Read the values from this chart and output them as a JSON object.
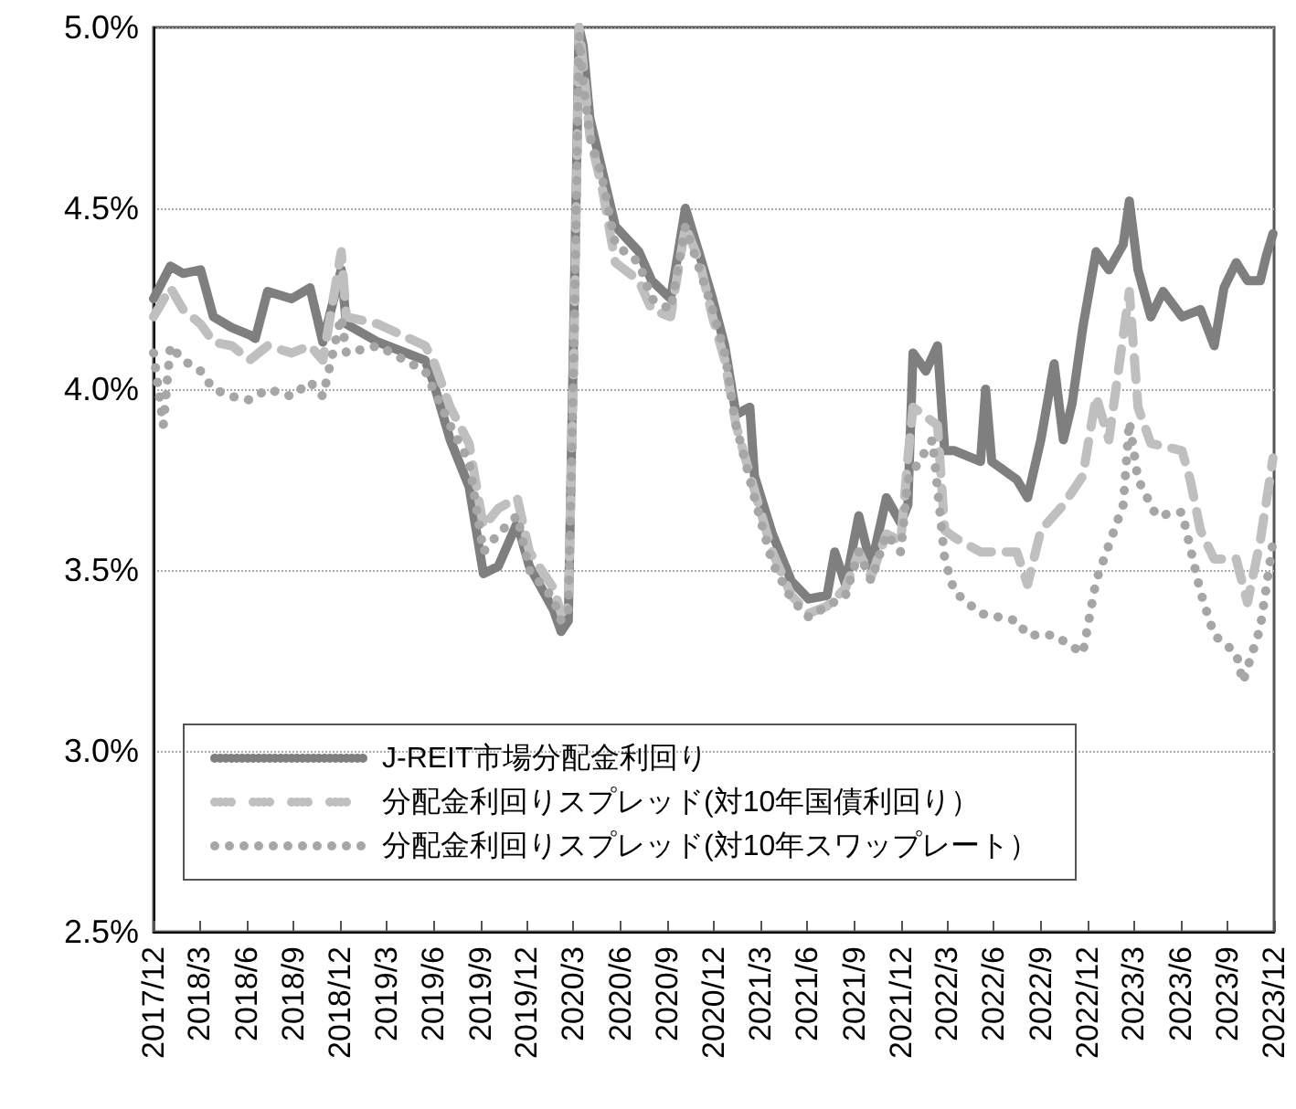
{
  "chart_data": {
    "type": "line",
    "ylim": [
      2.5,
      5.0
    ],
    "yticks": [
      {
        "value": 2.5,
        "label": "2.5%"
      },
      {
        "value": 3.0,
        "label": "3.0%"
      },
      {
        "value": 3.5,
        "label": "3.5%"
      },
      {
        "value": 4.0,
        "label": "4.0%"
      },
      {
        "value": 4.5,
        "label": "4.5%"
      },
      {
        "value": 5.0,
        "label": "5.0%"
      }
    ],
    "xlim": [
      "2017-12-01",
      "2023-12-01"
    ],
    "xticks": [
      {
        "value": "2017-12-01",
        "label": "2017/12"
      },
      {
        "value": "2018-03-01",
        "label": "2018/3"
      },
      {
        "value": "2018-06-01",
        "label": "2018/6"
      },
      {
        "value": "2018-09-01",
        "label": "2018/9"
      },
      {
        "value": "2018-12-01",
        "label": "2018/12"
      },
      {
        "value": "2019-03-01",
        "label": "2019/3"
      },
      {
        "value": "2019-06-01",
        "label": "2019/6"
      },
      {
        "value": "2019-09-01",
        "label": "2019/9"
      },
      {
        "value": "2019-12-01",
        "label": "2019/12"
      },
      {
        "value": "2020-03-01",
        "label": "2020/3"
      },
      {
        "value": "2020-06-01",
        "label": "2020/6"
      },
      {
        "value": "2020-09-01",
        "label": "2020/9"
      },
      {
        "value": "2020-12-01",
        "label": "2020/12"
      },
      {
        "value": "2021-03-01",
        "label": "2021/3"
      },
      {
        "value": "2021-06-01",
        "label": "2021/6"
      },
      {
        "value": "2021-09-01",
        "label": "2021/9"
      },
      {
        "value": "2021-12-01",
        "label": "2021/12"
      },
      {
        "value": "2022-03-01",
        "label": "2022/3"
      },
      {
        "value": "2022-06-01",
        "label": "2022/6"
      },
      {
        "value": "2022-09-01",
        "label": "2022/9"
      },
      {
        "value": "2022-12-01",
        "label": "2022/12"
      },
      {
        "value": "2023-03-01",
        "label": "2023/3"
      },
      {
        "value": "2023-06-01",
        "label": "2023/6"
      },
      {
        "value": "2023-09-01",
        "label": "2023/9"
      },
      {
        "value": "2023-12-01",
        "label": "2023/12"
      }
    ],
    "grid": "y",
    "legend": "bottom left",
    "marker": "none",
    "series": [
      {
        "name": "J-REIT市場分配金利回り",
        "color": "#7f7f7f",
        "line_style": "solid",
        "x": [
          "2017-12-01",
          "2018-01-03",
          "2018-01-28",
          "2018-03-03",
          "2018-03-28",
          "2018-05-03",
          "2018-06-07",
          "2018-06-18",
          "2018-07-12",
          "2018-08-28",
          "2018-10-03",
          "2018-10-28",
          "2018-12-03",
          "2018-12-13",
          "2019-02-13",
          "2019-05-16",
          "2019-06-01",
          "2019-07-04",
          "2019-08-10",
          "2019-09-07",
          "2019-10-06",
          "2019-11-12",
          "2019-12-06",
          "2020-01-22",
          "2020-02-06",
          "2020-02-20",
          "2020-03-02",
          "2020-03-12",
          "2020-03-20",
          "2020-04-02",
          "2020-04-27",
          "2020-05-22",
          "2020-07-07",
          "2020-08-01",
          "2020-09-07",
          "2020-10-06",
          "2020-11-03",
          "2020-11-28",
          "2020-12-22",
          "2021-01-13",
          "2021-02-09",
          "2021-02-18",
          "2021-03-25",
          "2021-05-01",
          "2021-06-04",
          "2021-07-10",
          "2021-07-25",
          "2021-08-15",
          "2021-09-10",
          "2021-10-04",
          "2021-11-03",
          "2021-12-01",
          "2021-12-15",
          "2021-12-25",
          "2022-01-19",
          "2022-02-11",
          "2022-02-25",
          "2022-03-16",
          "2022-05-06",
          "2022-05-16",
          "2022-05-28",
          "2022-07-16",
          "2022-08-06",
          "2022-09-01",
          "2022-09-27",
          "2022-10-15",
          "2022-11-01",
          "2022-11-22",
          "2022-12-18",
          "2023-01-12",
          "2023-02-09",
          "2023-02-21",
          "2023-03-10",
          "2023-04-04",
          "2023-04-28",
          "2023-06-04",
          "2023-07-10",
          "2023-08-06",
          "2023-08-25",
          "2023-09-18",
          "2023-10-10",
          "2023-11-04",
          "2023-11-16",
          "2023-11-29"
        ],
        "values": [
          4.25,
          4.34,
          4.32,
          4.33,
          4.2,
          4.17,
          4.15,
          4.14,
          4.27,
          4.25,
          4.28,
          4.13,
          4.33,
          4.18,
          4.13,
          4.08,
          4.02,
          3.86,
          3.73,
          3.49,
          3.51,
          3.63,
          3.51,
          3.39,
          3.33,
          3.36,
          4.2,
          5.0,
          4.95,
          4.75,
          4.6,
          4.45,
          4.38,
          4.3,
          4.25,
          4.5,
          4.37,
          4.25,
          4.12,
          3.93,
          3.95,
          3.76,
          3.6,
          3.47,
          3.42,
          3.43,
          3.55,
          3.46,
          3.65,
          3.51,
          3.7,
          3.63,
          3.68,
          4.1,
          4.05,
          4.12,
          3.83,
          3.83,
          3.8,
          4.0,
          3.8,
          3.75,
          3.7,
          3.86,
          4.07,
          3.86,
          3.96,
          4.17,
          4.38,
          4.33,
          4.4,
          4.52,
          4.33,
          4.2,
          4.27,
          4.2,
          4.22,
          4.12,
          4.28,
          4.35,
          4.3,
          4.3,
          4.37,
          4.43
        ]
      },
      {
        "name": "分配金利回りスプレッド(対10年国債利回り）",
        "color": "#bfbfbf",
        "line_style": "dashed",
        "x": [
          "2017-12-01",
          "2018-01-03",
          "2018-01-28",
          "2018-03-03",
          "2018-03-28",
          "2018-05-03",
          "2018-06-07",
          "2018-07-12",
          "2018-08-28",
          "2018-10-03",
          "2018-10-28",
          "2018-12-03",
          "2018-12-13",
          "2019-02-13",
          "2019-05-16",
          "2019-06-01",
          "2019-07-04",
          "2019-08-10",
          "2019-09-07",
          "2019-10-06",
          "2019-11-12",
          "2019-12-06",
          "2020-01-22",
          "2020-02-06",
          "2020-02-20",
          "2020-03-02",
          "2020-03-12",
          "2020-03-20",
          "2020-04-02",
          "2020-04-27",
          "2020-05-22",
          "2020-07-07",
          "2020-08-01",
          "2020-09-07",
          "2020-10-06",
          "2020-11-03",
          "2020-11-28",
          "2020-12-22",
          "2021-01-13",
          "2021-02-18",
          "2021-03-25",
          "2021-05-01",
          "2021-06-04",
          "2021-07-10",
          "2021-08-15",
          "2021-09-10",
          "2021-10-04",
          "2021-11-03",
          "2021-12-01",
          "2021-12-15",
          "2021-12-25",
          "2022-02-11",
          "2022-02-25",
          "2022-03-16",
          "2022-05-06",
          "2022-07-16",
          "2022-08-06",
          "2022-09-01",
          "2022-10-15",
          "2022-11-22",
          "2022-12-18",
          "2023-01-12",
          "2023-02-21",
          "2023-03-10",
          "2023-04-04",
          "2023-06-04",
          "2023-06-20",
          "2023-07-10",
          "2023-08-06",
          "2023-09-18",
          "2023-10-10",
          "2023-11-04",
          "2023-11-29"
        ],
        "values": [
          4.2,
          4.28,
          4.22,
          4.18,
          4.13,
          4.12,
          4.08,
          4.12,
          4.1,
          4.12,
          4.08,
          4.38,
          4.2,
          4.18,
          4.12,
          4.08,
          3.95,
          3.85,
          3.62,
          3.67,
          3.7,
          3.55,
          3.45,
          3.38,
          3.4,
          4.1,
          5.0,
          4.9,
          4.7,
          4.55,
          4.35,
          4.3,
          4.22,
          4.2,
          4.45,
          4.35,
          4.2,
          4.08,
          3.9,
          3.72,
          3.55,
          3.43,
          3.38,
          3.4,
          3.45,
          3.55,
          3.48,
          3.6,
          3.58,
          3.81,
          3.95,
          3.9,
          3.61,
          3.59,
          3.55,
          3.55,
          3.46,
          3.61,
          3.68,
          3.76,
          3.98,
          3.86,
          4.27,
          3.95,
          3.85,
          3.83,
          3.75,
          3.61,
          3.53,
          3.53,
          3.41,
          3.58,
          3.81
        ]
      },
      {
        "name": "分配金利回りスプレッド(対10年スワップレート）",
        "color": "#a6a6a6",
        "line_style": "dotted",
        "x": [
          "2017-12-01",
          "2017-12-20",
          "2018-01-03",
          "2018-01-28",
          "2018-03-03",
          "2018-03-28",
          "2018-05-03",
          "2018-06-07",
          "2018-07-12",
          "2018-08-28",
          "2018-10-03",
          "2018-10-28",
          "2018-12-03",
          "2018-12-13",
          "2019-02-13",
          "2019-05-16",
          "2019-06-01",
          "2019-07-04",
          "2019-08-10",
          "2019-09-07",
          "2019-10-06",
          "2019-11-12",
          "2019-12-06",
          "2020-01-22",
          "2020-02-06",
          "2020-02-20",
          "2020-03-02",
          "2020-03-12",
          "2020-03-20",
          "2020-04-02",
          "2020-04-27",
          "2020-05-22",
          "2020-07-07",
          "2020-08-01",
          "2020-09-07",
          "2020-10-06",
          "2020-11-03",
          "2020-11-28",
          "2020-12-22",
          "2021-01-13",
          "2021-02-18",
          "2021-03-25",
          "2021-05-01",
          "2021-06-04",
          "2021-07-10",
          "2021-08-15",
          "2021-09-10",
          "2021-10-04",
          "2021-11-03",
          "2021-12-01",
          "2021-12-15",
          "2022-02-01",
          "2022-02-25",
          "2022-03-16",
          "2022-05-06",
          "2022-07-16",
          "2022-08-06",
          "2022-09-27",
          "2022-11-22",
          "2022-12-18",
          "2023-02-09",
          "2023-02-21",
          "2023-03-10",
          "2023-04-15",
          "2023-06-04",
          "2023-07-10",
          "2023-08-06",
          "2023-09-18",
          "2023-10-01",
          "2023-11-04",
          "2023-11-29"
        ],
        "values": [
          4.1,
          3.9,
          4.12,
          4.08,
          4.05,
          4.0,
          3.98,
          3.97,
          4.0,
          3.98,
          4.02,
          3.98,
          4.2,
          4.1,
          4.12,
          4.05,
          4.0,
          3.9,
          3.8,
          3.55,
          3.6,
          3.65,
          3.5,
          3.42,
          3.36,
          3.38,
          4.1,
          4.98,
          4.85,
          4.7,
          4.58,
          4.4,
          4.35,
          4.25,
          4.22,
          4.45,
          4.33,
          4.22,
          4.1,
          3.9,
          3.7,
          3.52,
          3.42,
          3.37,
          3.4,
          3.43,
          3.55,
          3.47,
          3.6,
          3.55,
          3.75,
          3.86,
          3.53,
          3.44,
          3.38,
          3.36,
          3.32,
          3.32,
          3.27,
          3.47,
          3.68,
          3.91,
          3.75,
          3.65,
          3.66,
          3.44,
          3.32,
          3.27,
          3.19,
          3.34,
          3.58
        ]
      }
    ]
  }
}
